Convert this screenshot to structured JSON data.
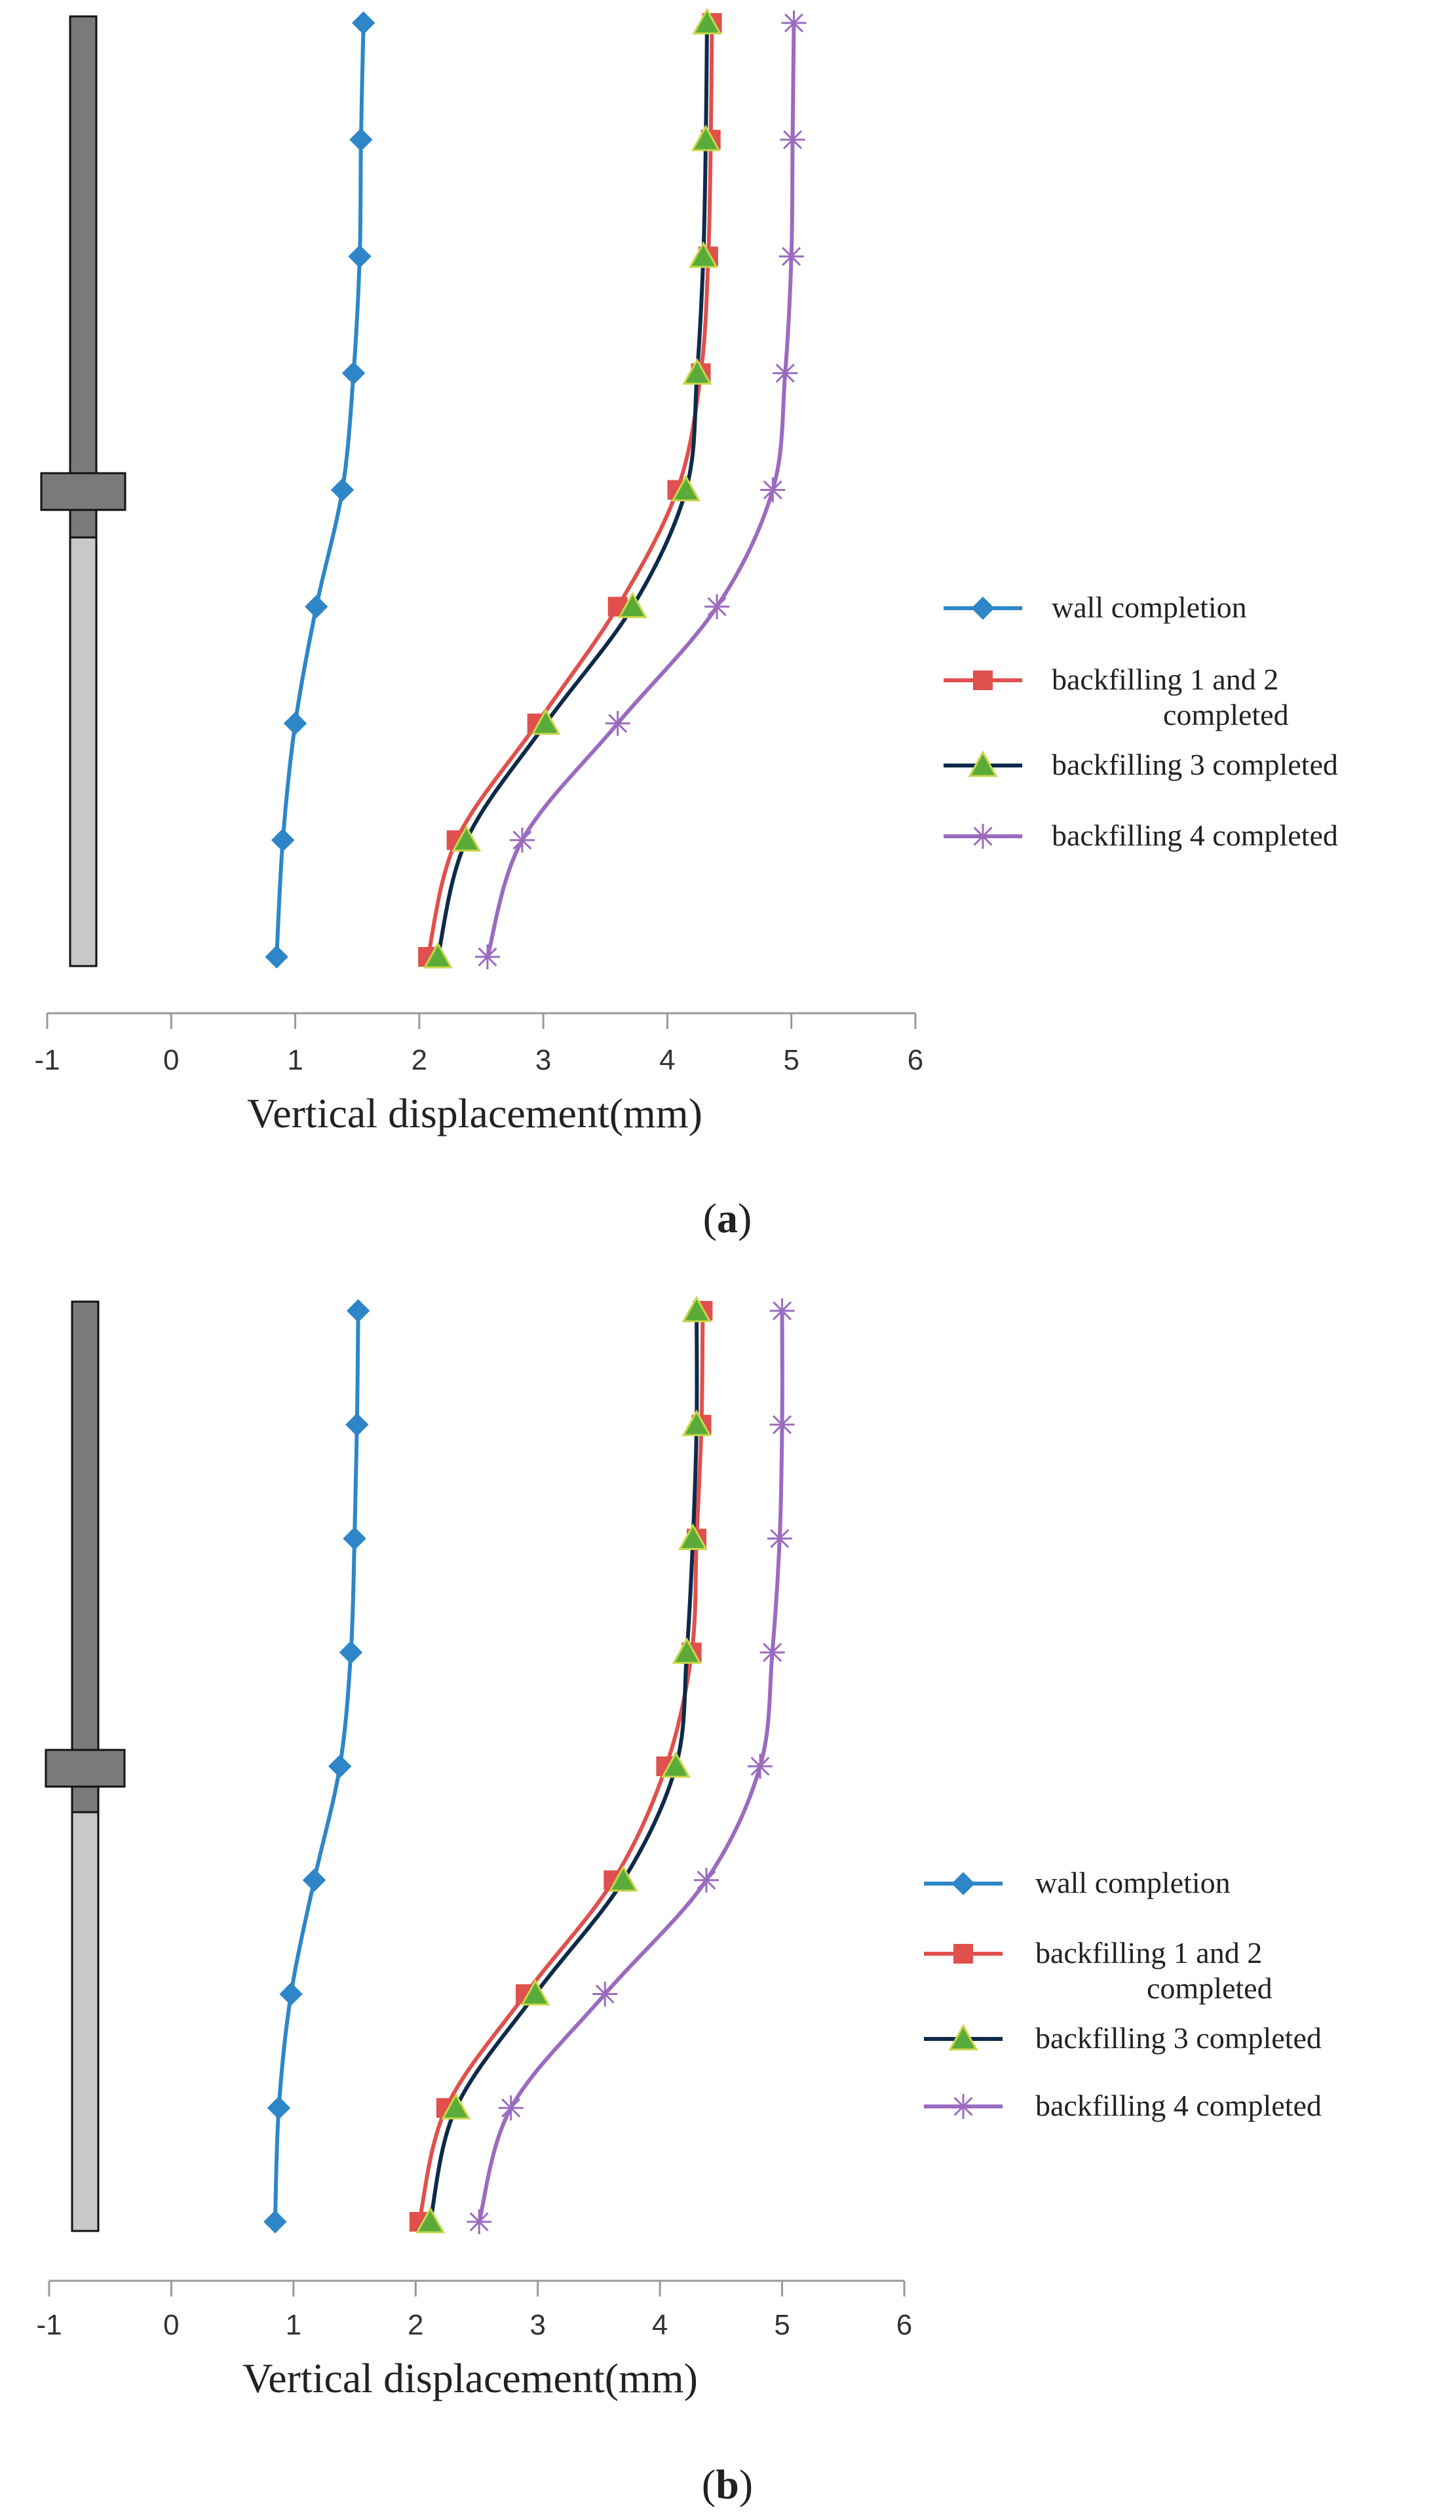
{
  "chart_data": [
    {
      "type": "line",
      "panel_label": "a",
      "xlabel": "Vertical displacement(mm)",
      "ylabel": "",
      "xlim": [
        -1,
        6
      ],
      "x_ticks": [
        "-1",
        "0",
        "1",
        "2",
        "3",
        "4",
        "5",
        "6"
      ],
      "levels": 9,
      "series": [
        {
          "name": "wall completion",
          "color": "#2e86c8",
          "marker": "diamond",
          "values": [
            1.55,
            1.53,
            1.52,
            1.47,
            1.38,
            1.17,
            1.0,
            0.9,
            0.85
          ]
        },
        {
          "name": "backfilling 1 and 2\ncompleted",
          "color": "#e0504c",
          "marker": "square",
          "values": [
            4.36,
            4.35,
            4.33,
            4.27,
            4.08,
            3.6,
            2.95,
            2.3,
            2.07
          ]
        },
        {
          "name": "backfilling 3 completed",
          "color": "#0d2a4a",
          "marker": "triangle",
          "values": [
            4.32,
            4.31,
            4.29,
            4.24,
            4.15,
            3.72,
            3.02,
            2.38,
            2.15
          ]
        },
        {
          "name": "backfilling 4 completed",
          "color": "#9b6bbf",
          "marker": "star",
          "values": [
            5.02,
            5.01,
            5.0,
            4.95,
            4.85,
            4.4,
            3.6,
            2.83,
            2.55
          ]
        }
      ]
    },
    {
      "type": "line",
      "panel_label": "b",
      "xlabel": "Vertical displacement(mm)",
      "ylabel": "",
      "xlim": [
        -1,
        6
      ],
      "x_ticks": [
        "-1",
        "0",
        "1",
        "2",
        "3",
        "4",
        "5",
        "6"
      ],
      "levels": 9,
      "series": [
        {
          "name": "wall completion",
          "color": "#2e86c8",
          "marker": "diamond",
          "values": [
            1.53,
            1.52,
            1.5,
            1.47,
            1.38,
            1.17,
            0.98,
            0.88,
            0.85
          ]
        },
        {
          "name": "backfilling 1 and 2\ncompleted",
          "color": "#e0504c",
          "marker": "square",
          "values": [
            4.35,
            4.34,
            4.3,
            4.26,
            4.05,
            3.62,
            2.9,
            2.25,
            2.03
          ]
        },
        {
          "name": "backfilling 3 completed",
          "color": "#0d2a4a",
          "marker": "triangle",
          "values": [
            4.3,
            4.3,
            4.27,
            4.22,
            4.13,
            3.7,
            2.98,
            2.33,
            2.12
          ]
        },
        {
          "name": "backfilling 4 completed",
          "color": "#9b6bbf",
          "marker": "star",
          "values": [
            5.0,
            5.0,
            4.98,
            4.92,
            4.82,
            4.38,
            3.55,
            2.78,
            2.52
          ]
        }
      ]
    }
  ]
}
